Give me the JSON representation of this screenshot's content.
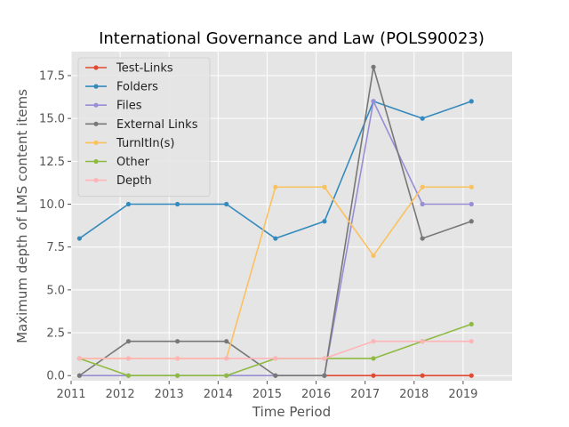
{
  "chart_data": {
    "type": "line",
    "title": "International Governance and Law (POLS90023)",
    "xlabel": "Time Period",
    "ylabel": "Maximum depth of LMS content items",
    "xlim": [
      2011,
      2020
    ],
    "ylim": [
      -0.3,
      18.9
    ],
    "x_ticks": [
      2011,
      2012,
      2013,
      2014,
      2015,
      2016,
      2017,
      2018,
      2019
    ],
    "x_tick_labels": [
      "2011",
      "2012",
      "2013",
      "2014",
      "2015",
      "2016",
      "2017",
      "2018",
      "2019"
    ],
    "y_ticks": [
      0,
      2.5,
      5,
      7.5,
      10,
      12.5,
      15,
      17.5
    ],
    "y_tick_labels": [
      "0.0",
      "2.5",
      "5.0",
      "7.5",
      "10.0",
      "12.5",
      "15.0",
      "17.5"
    ],
    "grid": true,
    "legend_position": "top-left",
    "x": [
      2011.17,
      2012.17,
      2013.17,
      2014.17,
      2015.17,
      2016.17,
      2017.17,
      2018.17,
      2019.17
    ],
    "series": [
      {
        "name": "Test-Links",
        "color": "#E24A33",
        "values": [
          null,
          null,
          null,
          null,
          null,
          0,
          0,
          0,
          0
        ]
      },
      {
        "name": "Folders",
        "color": "#348ABD",
        "values": [
          8,
          10,
          10,
          10,
          8,
          9,
          16,
          15,
          16
        ]
      },
      {
        "name": "Files",
        "color": "#988ED5",
        "values": [
          0,
          0,
          0,
          0,
          0,
          0,
          16,
          10,
          10
        ]
      },
      {
        "name": "External Links",
        "color": "#777777",
        "values": [
          0,
          2,
          2,
          2,
          0,
          0,
          18,
          8,
          9
        ]
      },
      {
        "name": "TurnItIn(s)",
        "color": "#FBC15E",
        "values": [
          1,
          1,
          1,
          1,
          11,
          11,
          7,
          11,
          11
        ]
      },
      {
        "name": "Other",
        "color": "#8EBA42",
        "values": [
          1,
          0,
          0,
          0,
          1,
          1,
          1,
          2,
          3
        ]
      },
      {
        "name": "Depth",
        "color": "#FFB5B8",
        "values": [
          1,
          1,
          1,
          1,
          1,
          1,
          2,
          2,
          2
        ]
      }
    ]
  },
  "style": {
    "plot_background": "#E5E5E5",
    "grid_color": "#FFFFFF",
    "text_color": "#555555"
  }
}
